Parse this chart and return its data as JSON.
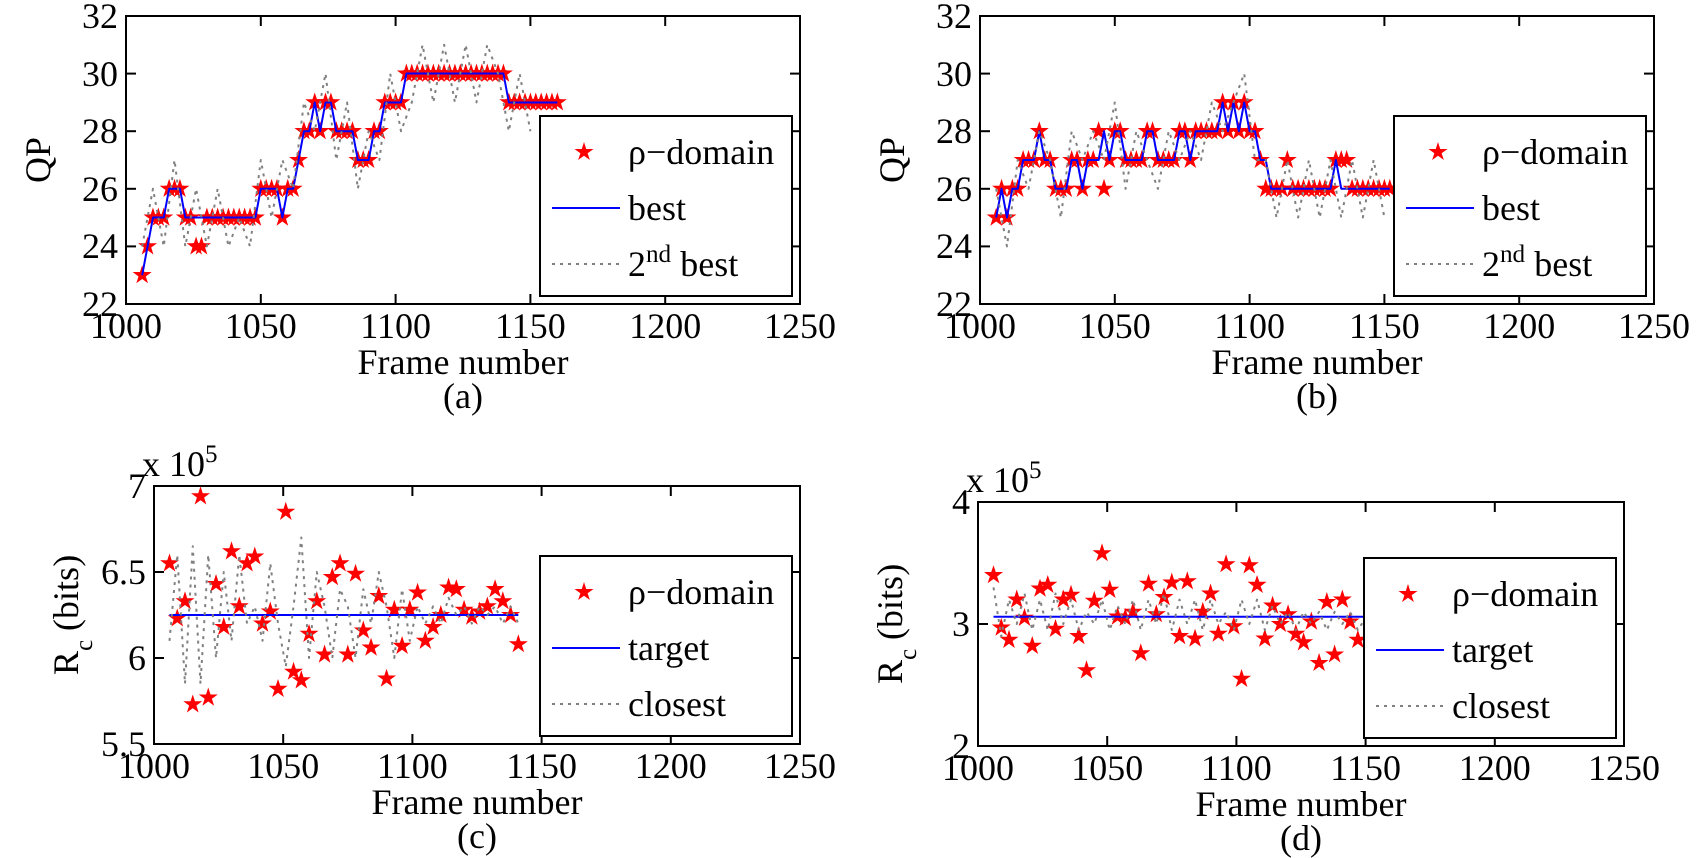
{
  "chart_data": [
    {
      "type": "scatter",
      "xlabel": "Frame number",
      "ylabel": "QP",
      "annotations": [
        "(a)"
      ],
      "xlim": [
        1000,
        1250
      ],
      "ylim": [
        22,
        32
      ],
      "xticks": [
        1000,
        1050,
        1100,
        1150,
        1200,
        1250
      ],
      "yticks": [
        22,
        24,
        26,
        28,
        30,
        32
      ],
      "legend": "bottom right",
      "series": [
        {
          "name": "ρ−domain",
          "marker": "star",
          "color": "#ff0000",
          "x": [
            1006,
            1008,
            1010,
            1012,
            1014,
            1016,
            1018,
            1020,
            1022,
            1024,
            1026,
            1028,
            1030,
            1032,
            1034,
            1036,
            1038,
            1040,
            1042,
            1044,
            1046,
            1048,
            1050,
            1052,
            1054,
            1056,
            1058,
            1060,
            1062,
            1064,
            1066,
            1068,
            1070,
            1072,
            1074,
            1076,
            1078,
            1080,
            1082,
            1084,
            1086,
            1088,
            1090,
            1092,
            1094,
            1096,
            1098,
            1100,
            1102,
            1104,
            1106,
            1108,
            1110,
            1112,
            1114,
            1116,
            1118,
            1120,
            1122,
            1124,
            1126,
            1128,
            1130,
            1132,
            1134,
            1136,
            1138,
            1140,
            1142,
            1144,
            1146,
            1148,
            1150,
            1152,
            1154,
            1156,
            1158,
            1160
          ],
          "values": [
            23,
            24,
            25,
            25,
            25,
            26,
            26,
            26,
            25,
            25,
            24,
            24,
            25,
            25,
            25,
            25,
            25,
            25,
            25,
            25,
            25,
            25,
            26,
            26,
            26,
            26,
            25,
            26,
            26,
            27,
            28,
            28,
            29,
            28,
            29,
            29,
            28,
            28,
            28,
            28,
            27,
            27,
            27,
            28,
            28,
            29,
            29,
            29,
            29,
            30,
            30,
            30,
            30,
            30,
            30,
            30,
            30,
            30,
            30,
            30,
            30,
            30,
            30,
            30,
            30,
            30,
            30,
            30,
            29,
            29,
            29,
            29,
            29,
            29,
            29,
            29,
            29,
            29
          ]
        },
        {
          "name": "best",
          "type": "line",
          "line_style": "solid",
          "color": "#0000ff",
          "x": [
            1006,
            1008,
            1010,
            1012,
            1014,
            1016,
            1018,
            1020,
            1022,
            1024,
            1026,
            1028,
            1030,
            1032,
            1034,
            1036,
            1038,
            1040,
            1042,
            1044,
            1046,
            1048,
            1050,
            1052,
            1054,
            1056,
            1058,
            1060,
            1062,
            1064,
            1066,
            1068,
            1070,
            1072,
            1074,
            1076,
            1078,
            1080,
            1082,
            1084,
            1086,
            1088,
            1090,
            1092,
            1094,
            1096,
            1098,
            1100,
            1102,
            1104,
            1106,
            1108,
            1110,
            1112,
            1114,
            1116,
            1118,
            1120,
            1122,
            1124,
            1126,
            1128,
            1130,
            1132,
            1134,
            1136,
            1138,
            1140,
            1142,
            1144,
            1146,
            1148,
            1150,
            1152,
            1154,
            1156,
            1158,
            1160
          ],
          "values": [
            23,
            24,
            25,
            25,
            25,
            26,
            26,
            26,
            25,
            25,
            25,
            25,
            25,
            25,
            25,
            25,
            25,
            25,
            25,
            25,
            25,
            25,
            26,
            26,
            26,
            26,
            25,
            26,
            26,
            27,
            28,
            28,
            29,
            28,
            29,
            29,
            28,
            28,
            28,
            28,
            27,
            27,
            27,
            28,
            28,
            29,
            29,
            29,
            29,
            30,
            30,
            30,
            30,
            30,
            30,
            30,
            30,
            30,
            30,
            30,
            30,
            30,
            30,
            30,
            30,
            30,
            30,
            30,
            29,
            29,
            29,
            29,
            29,
            29,
            29,
            29,
            29,
            29
          ]
        },
        {
          "name": "2$^{nd}$ best",
          "type": "line",
          "line_style": "dotted",
          "color": "#808080",
          "x": [
            1006,
            1010,
            1014,
            1018,
            1022,
            1026,
            1030,
            1034,
            1038,
            1042,
            1046,
            1050,
            1054,
            1058,
            1062,
            1066,
            1070,
            1074,
            1078,
            1082,
            1086,
            1090,
            1094,
            1098,
            1102,
            1106,
            1110,
            1114,
            1118,
            1122,
            1126,
            1130,
            1134,
            1138,
            1142,
            1146,
            1150
          ],
          "values": [
            24,
            26,
            24,
            27,
            24,
            26,
            24,
            26,
            24,
            25,
            24,
            27,
            25,
            27,
            26,
            29,
            28,
            30,
            27,
            29,
            26,
            28,
            27,
            30,
            28,
            29,
            31,
            29,
            31,
            29,
            31,
            29,
            31,
            30,
            28,
            30,
            28
          ]
        }
      ]
    },
    {
      "type": "scatter",
      "xlabel": "Frame number",
      "ylabel": "QP",
      "annotations": [
        "(b)"
      ],
      "xlim": [
        1000,
        1250
      ],
      "ylim": [
        22,
        32
      ],
      "xticks": [
        1000,
        1050,
        1100,
        1150,
        1200,
        1250
      ],
      "yticks": [
        22,
        24,
        26,
        28,
        30,
        32
      ],
      "legend": "bottom right",
      "series": [
        {
          "name": "ρ−domain",
          "marker": "star",
          "color": "#ff0000",
          "x": [
            1006,
            1008,
            1010,
            1012,
            1014,
            1016,
            1018,
            1020,
            1022,
            1024,
            1026,
            1028,
            1030,
            1032,
            1034,
            1036,
            1038,
            1040,
            1042,
            1044,
            1046,
            1048,
            1050,
            1052,
            1054,
            1056,
            1058,
            1060,
            1062,
            1064,
            1066,
            1068,
            1070,
            1072,
            1074,
            1076,
            1078,
            1080,
            1082,
            1084,
            1086,
            1088,
            1090,
            1092,
            1094,
            1096,
            1098,
            1100,
            1102,
            1104,
            1106,
            1108,
            1110,
            1112,
            1114,
            1116,
            1118,
            1120,
            1122,
            1124,
            1126,
            1128,
            1130,
            1132,
            1134,
            1136,
            1138,
            1140,
            1142,
            1144,
            1146,
            1148,
            1150,
            1152
          ],
          "values": [
            25,
            26,
            25,
            26,
            26,
            27,
            27,
            27,
            28,
            27,
            27,
            26,
            26,
            26,
            27,
            27,
            26,
            27,
            27,
            28,
            26,
            27,
            28,
            28,
            27,
            27,
            27,
            27,
            28,
            28,
            27,
            27,
            27,
            27,
            28,
            28,
            27,
            28,
            28,
            28,
            28,
            28,
            29,
            28,
            29,
            28,
            29,
            28,
            28,
            27,
            26,
            26,
            26,
            26,
            27,
            26,
            26,
            26,
            26,
            26,
            26,
            26,
            26,
            27,
            27,
            27,
            26,
            26,
            26,
            26,
            26,
            26,
            26,
            26
          ]
        },
        {
          "name": "best",
          "type": "line",
          "line_style": "solid",
          "color": "#0000ff",
          "x": [
            1006,
            1008,
            1010,
            1012,
            1014,
            1016,
            1018,
            1020,
            1022,
            1024,
            1026,
            1028,
            1030,
            1032,
            1034,
            1036,
            1038,
            1040,
            1042,
            1044,
            1046,
            1048,
            1050,
            1052,
            1054,
            1056,
            1058,
            1060,
            1062,
            1064,
            1066,
            1068,
            1070,
            1072,
            1074,
            1076,
            1078,
            1080,
            1082,
            1084,
            1086,
            1088,
            1090,
            1092,
            1094,
            1096,
            1098,
            1100,
            1102,
            1104,
            1106,
            1108,
            1110,
            1112,
            1114,
            1116,
            1118,
            1120,
            1122,
            1124,
            1126,
            1128,
            1130,
            1132,
            1134,
            1136,
            1138,
            1140,
            1142,
            1144,
            1146,
            1148,
            1150,
            1152
          ],
          "values": [
            25,
            26,
            25,
            26,
            26,
            27,
            27,
            27,
            28,
            27,
            27,
            26,
            26,
            26,
            27,
            27,
            26,
            27,
            27,
            27,
            28,
            27,
            28,
            28,
            27,
            27,
            27,
            27,
            28,
            28,
            27,
            27,
            27,
            27,
            28,
            28,
            27,
            28,
            28,
            28,
            28,
            28,
            29,
            28,
            29,
            28,
            29,
            28,
            28,
            27,
            27,
            26,
            26,
            26,
            26,
            26,
            26,
            26,
            26,
            26,
            26,
            26,
            26,
            27,
            26,
            26,
            26,
            26,
            26,
            26,
            26,
            26,
            26,
            26
          ]
        },
        {
          "name": "2$^{nd}$ best",
          "type": "line",
          "line_style": "dotted",
          "color": "#808080",
          "x": [
            1006,
            1010,
            1014,
            1018,
            1022,
            1026,
            1030,
            1034,
            1038,
            1042,
            1046,
            1050,
            1054,
            1058,
            1062,
            1066,
            1070,
            1074,
            1078,
            1082,
            1086,
            1090,
            1094,
            1098,
            1102,
            1106,
            1110,
            1114,
            1118,
            1122,
            1126,
            1130,
            1134,
            1138,
            1142,
            1146,
            1150
          ],
          "values": [
            26,
            24,
            27,
            26,
            28,
            27,
            25,
            28,
            27,
            28,
            27,
            29,
            26,
            28,
            27,
            26,
            28,
            27,
            28,
            27,
            29,
            28,
            29,
            30,
            27,
            27,
            25,
            27,
            25,
            27,
            25,
            27,
            25,
            27,
            25,
            27,
            25
          ]
        }
      ]
    },
    {
      "type": "scatter",
      "xlabel": "Frame number",
      "ylabel": "R$_{c}$ (bits)",
      "annotations": [
        "(c)",
        "x 10$^{5}$"
      ],
      "xlim": [
        1000,
        1250
      ],
      "ylim": [
        5.5,
        7
      ],
      "xticks": [
        1000,
        1050,
        1100,
        1150,
        1200,
        1250
      ],
      "yticks": [
        5.5,
        6,
        6.5,
        7
      ],
      "legend": "bottom right",
      "series": [
        {
          "name": "ρ−domain",
          "marker": "star",
          "color": "#ff0000",
          "x": [
            1006,
            1009,
            1012,
            1015,
            1018,
            1021,
            1024,
            1027,
            1030,
            1033,
            1036,
            1039,
            1042,
            1045,
            1048,
            1051,
            1054,
            1057,
            1060,
            1063,
            1066,
            1069,
            1072,
            1075,
            1078,
            1081,
            1084,
            1087,
            1090,
            1093,
            1096,
            1099,
            1102,
            1105,
            1108,
            1111,
            1114,
            1117,
            1120,
            1123,
            1126,
            1129,
            1132,
            1135,
            1138,
            1141
          ],
          "values": [
            6.55,
            6.23,
            6.33,
            5.73,
            6.94,
            5.77,
            6.43,
            6.18,
            6.62,
            6.3,
            6.55,
            6.59,
            6.2,
            6.27,
            5.82,
            6.85,
            5.92,
            5.87,
            6.14,
            6.33,
            6.02,
            6.47,
            6.55,
            6.02,
            6.49,
            6.16,
            6.06,
            6.36,
            5.88,
            6.28,
            6.07,
            6.28,
            6.38,
            6.1,
            6.18,
            6.25,
            6.41,
            6.4,
            6.28,
            6.24,
            6.27,
            6.3,
            6.4,
            6.33,
            6.25,
            6.08
          ]
        },
        {
          "name": "target",
          "type": "line",
          "line_style": "solid",
          "color": "#0000ff",
          "x": [
            1006,
            1141
          ],
          "values": [
            6.25,
            6.25
          ]
        },
        {
          "name": "closest",
          "type": "line",
          "line_style": "dotted",
          "color": "#808080",
          "x": [
            1006,
            1009,
            1012,
            1015,
            1018,
            1021,
            1024,
            1027,
            1030,
            1033,
            1036,
            1039,
            1042,
            1045,
            1048,
            1051,
            1054,
            1057,
            1060,
            1063,
            1066,
            1069,
            1072,
            1075,
            1078,
            1081,
            1084,
            1087,
            1090,
            1093,
            1096,
            1099,
            1102,
            1105,
            1108,
            1111,
            1114,
            1117,
            1120,
            1123,
            1126,
            1129,
            1132,
            1135,
            1138,
            1141
          ],
          "values": [
            6.1,
            6.6,
            5.85,
            6.65,
            5.85,
            6.6,
            6.0,
            6.5,
            6.1,
            6.6,
            6.2,
            6.3,
            6.1,
            6.55,
            6.2,
            5.95,
            6.3,
            6.7,
            6.0,
            6.5,
            6.3,
            6.0,
            6.4,
            6.3,
            6.0,
            6.4,
            6.2,
            6.5,
            6.3,
            6.0,
            6.4,
            6.1,
            6.3,
            6.2,
            6.3,
            6.2,
            6.35,
            6.25,
            6.3,
            6.2,
            6.3,
            6.25,
            6.3,
            6.2,
            6.3,
            6.2
          ]
        }
      ]
    },
    {
      "type": "scatter",
      "xlabel": "Frame number",
      "ylabel": "R$_{c}$ (bits)",
      "annotations": [
        "(d)",
        "x 10$^{5}$"
      ],
      "xlim": [
        1000,
        1250
      ],
      "ylim": [
        2,
        4
      ],
      "xticks": [
        1000,
        1050,
        1100,
        1150,
        1200,
        1250
      ],
      "yticks": [
        2,
        3,
        4
      ],
      "legend": "bottom right",
      "series": [
        {
          "name": "ρ−domain",
          "marker": "star",
          "color": "#ff0000",
          "x": [
            1006,
            1009,
            1012,
            1015,
            1018,
            1021,
            1024,
            1027,
            1030,
            1033,
            1036,
            1039,
            1042,
            1045,
            1048,
            1051,
            1054,
            1057,
            1060,
            1063,
            1066,
            1069,
            1072,
            1075,
            1078,
            1081,
            1084,
            1087,
            1090,
            1093,
            1096,
            1099,
            1102,
            1105,
            1108,
            1111,
            1114,
            1117,
            1120,
            1123,
            1126,
            1129,
            1132,
            1135,
            1138,
            1141,
            1144,
            1147
          ],
          "values": [
            3.4,
            2.97,
            2.87,
            3.2,
            3.05,
            2.82,
            3.29,
            3.32,
            2.96,
            3.2,
            3.24,
            2.9,
            2.62,
            3.19,
            3.58,
            3.28,
            3.06,
            3.05,
            3.1,
            2.76,
            3.33,
            3.08,
            3.22,
            3.34,
            2.9,
            3.35,
            2.88,
            3.1,
            3.25,
            2.92,
            3.49,
            2.98,
            2.55,
            3.48,
            3.32,
            2.88,
            3.15,
            3.0,
            3.08,
            2.92,
            2.85,
            3.02,
            2.68,
            3.18,
            2.75,
            3.2,
            3.02,
            2.87
          ]
        },
        {
          "name": "target",
          "type": "line",
          "line_style": "solid",
          "color": "#0000ff",
          "x": [
            1006,
            1150
          ],
          "values": [
            3.06,
            3.06
          ]
        },
        {
          "name": "closest",
          "type": "line",
          "line_style": "dotted",
          "color": "#808080",
          "x": [
            1006,
            1009,
            1012,
            1015,
            1018,
            1021,
            1024,
            1027,
            1030,
            1033,
            1036,
            1039,
            1042,
            1045,
            1048,
            1051,
            1054,
            1057,
            1060,
            1063,
            1066,
            1069,
            1072,
            1075,
            1078,
            1081,
            1084,
            1087,
            1090,
            1093,
            1096,
            1099,
            1102,
            1105,
            1108,
            1111,
            1114,
            1117,
            1120,
            1123,
            1126,
            1129,
            1132,
            1135,
            1138,
            1141,
            1144,
            1147,
            1150
          ],
          "values": [
            3.3,
            2.9,
            3.2,
            3.0,
            3.25,
            2.95,
            3.2,
            2.95,
            3.25,
            3.0,
            3.2,
            2.95,
            3.1,
            3.0,
            3.2,
            2.95,
            3.15,
            3.0,
            3.2,
            2.95,
            3.2,
            3.0,
            3.25,
            2.95,
            3.2,
            3.0,
            3.2,
            2.95,
            3.2,
            3.0,
            3.1,
            2.95,
            3.2,
            3.0,
            3.2,
            2.95,
            3.15,
            3.0,
            3.1,
            2.95,
            3.1,
            3.0,
            3.1,
            2.95,
            3.1,
            3.0,
            3.1,
            2.95,
            3.05
          ]
        }
      ]
    }
  ]
}
